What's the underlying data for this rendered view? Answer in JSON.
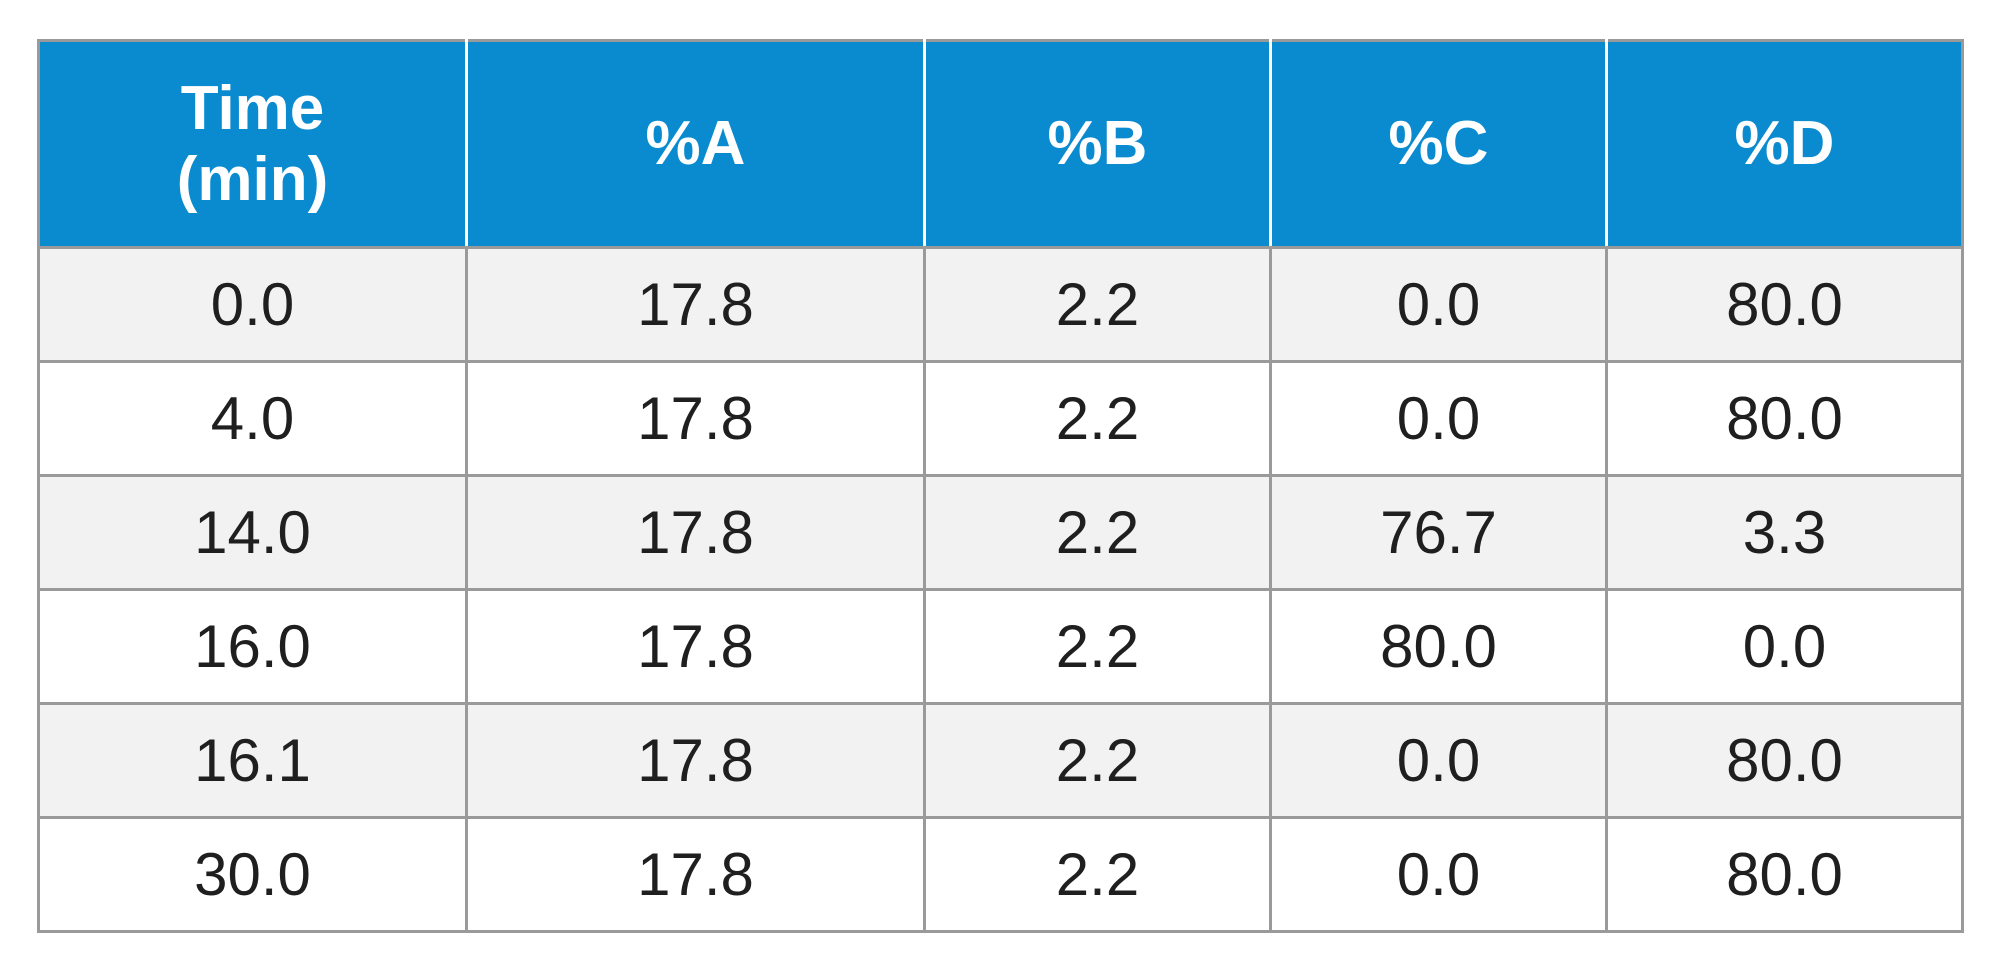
{
  "table": {
    "headers": [
      "Time\n(min)",
      "%A",
      "%B",
      "%C",
      "%D"
    ],
    "header_time_line1": "Time",
    "header_time_line2": "(min)",
    "rows": [
      [
        "0.0",
        "17.8",
        "2.2",
        "0.0",
        "80.0"
      ],
      [
        "4.0",
        "17.8",
        "2.2",
        "0.0",
        "80.0"
      ],
      [
        "14.0",
        "17.8",
        "2.2",
        "76.7",
        "3.3"
      ],
      [
        "16.0",
        "17.8",
        "2.2",
        "80.0",
        "0.0"
      ],
      [
        "16.1",
        "17.8",
        "2.2",
        "0.0",
        "80.0"
      ],
      [
        "30.0",
        "17.8",
        "2.2",
        "0.0",
        "80.0"
      ]
    ]
  },
  "colors": {
    "header_bg": "#0a8bd0",
    "header_text": "#ffffff",
    "stripe_bg": "#f2f2f3",
    "grid": "#9a9a9a",
    "cell_text": "#1f1f1f"
  }
}
